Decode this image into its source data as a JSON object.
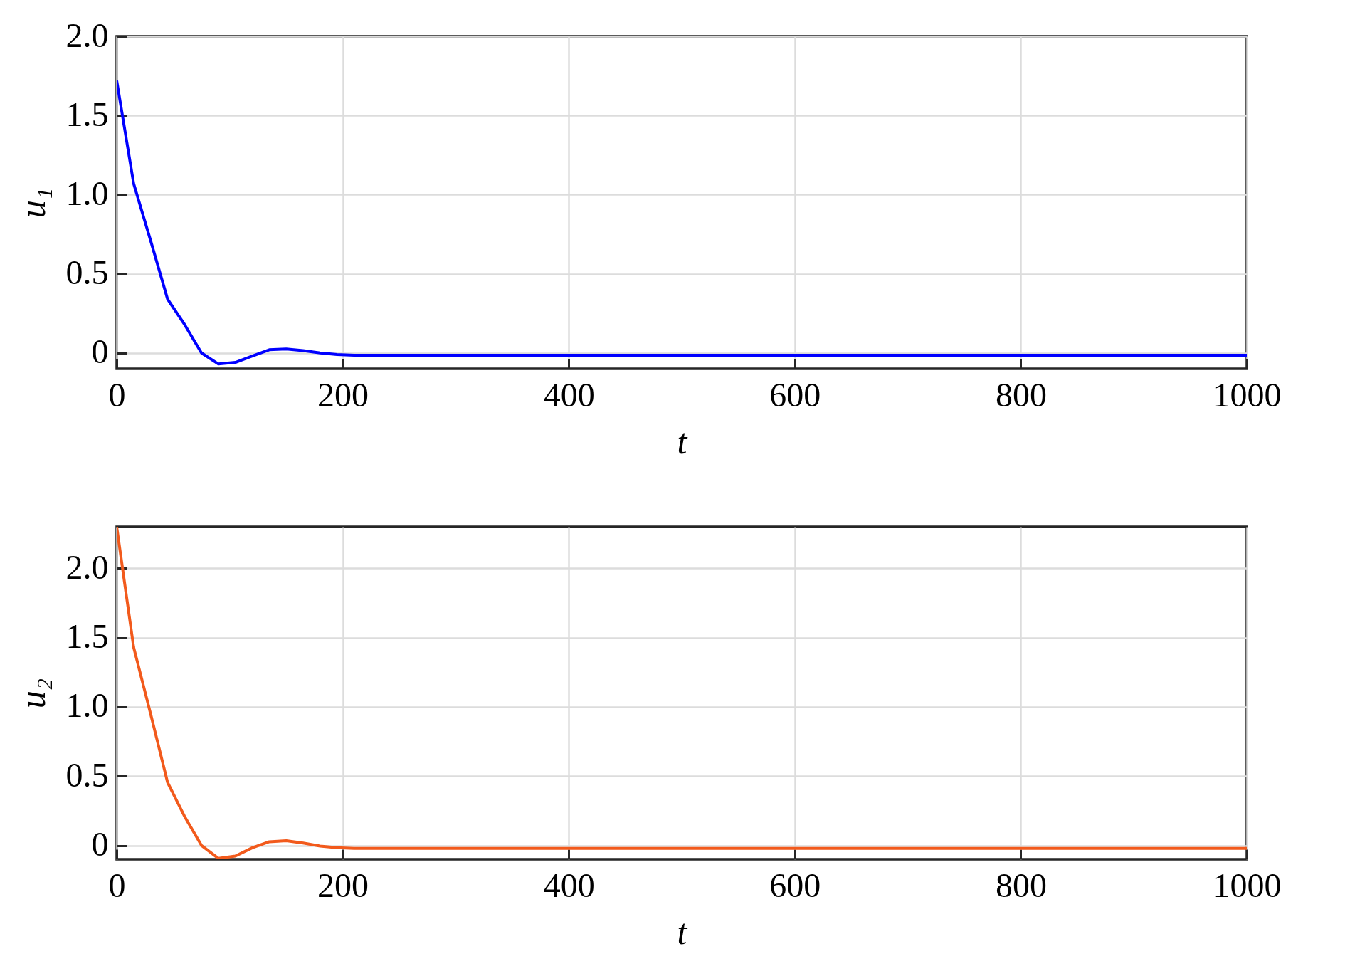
{
  "chart_data": [
    {
      "type": "line",
      "xlabel": "t",
      "ylabel": "u₁",
      "x": [
        0,
        15,
        30,
        45,
        60,
        75,
        90,
        105,
        120,
        135,
        150,
        165,
        180,
        195,
        210,
        1000
      ],
      "xlim": [
        0,
        1000
      ],
      "xticks": [
        0,
        200,
        400,
        600,
        800,
        1000
      ],
      "ylim": [
        -0.1,
        2
      ],
      "yticks": [
        0,
        {
          "value": 0.5,
          "label": "0.5"
        },
        {
          "value": 1,
          "label": "1.0"
        },
        {
          "value": 1.5,
          "label": "1.5"
        },
        {
          "value": 2,
          "label": "2.0"
        }
      ],
      "grid": true,
      "marker": "none",
      "line_style": "solid",
      "series": [
        {
          "color": "#0000ff",
          "values": [
            1.72,
            1.07,
            0.71,
            0.34,
            0.18,
            0.0,
            -0.07,
            -0.06,
            -0.02,
            0.02,
            0.025,
            0.015,
            0.0,
            -0.01,
            -0.015,
            -0.015
          ]
        }
      ]
    },
    {
      "type": "line",
      "xlabel": "t",
      "ylabel": "u₂",
      "x": [
        0,
        15,
        30,
        45,
        60,
        75,
        90,
        105,
        120,
        135,
        150,
        165,
        180,
        195,
        210,
        1000
      ],
      "xlim": [
        0,
        1000
      ],
      "xticks": [
        0,
        200,
        400,
        600,
        800,
        1000
      ],
      "ylim": [
        -0.1,
        2.3
      ],
      "yticks": [
        0,
        {
          "value": 0.5,
          "label": "0.5"
        },
        {
          "value": 1,
          "label": "1.0"
        },
        {
          "value": 1.5,
          "label": "1.5"
        },
        {
          "value": 2,
          "label": "2.0"
        }
      ],
      "grid": true,
      "marker": "none",
      "line_style": "solid",
      "series": [
        {
          "color": "#f25a1c",
          "values": [
            2.3,
            1.43,
            0.95,
            0.455,
            0.21,
            0.0,
            -0.094,
            -0.077,
            -0.017,
            0.026,
            0.034,
            0.017,
            -0.005,
            -0.017,
            -0.022,
            -0.022
          ]
        }
      ]
    }
  ]
}
